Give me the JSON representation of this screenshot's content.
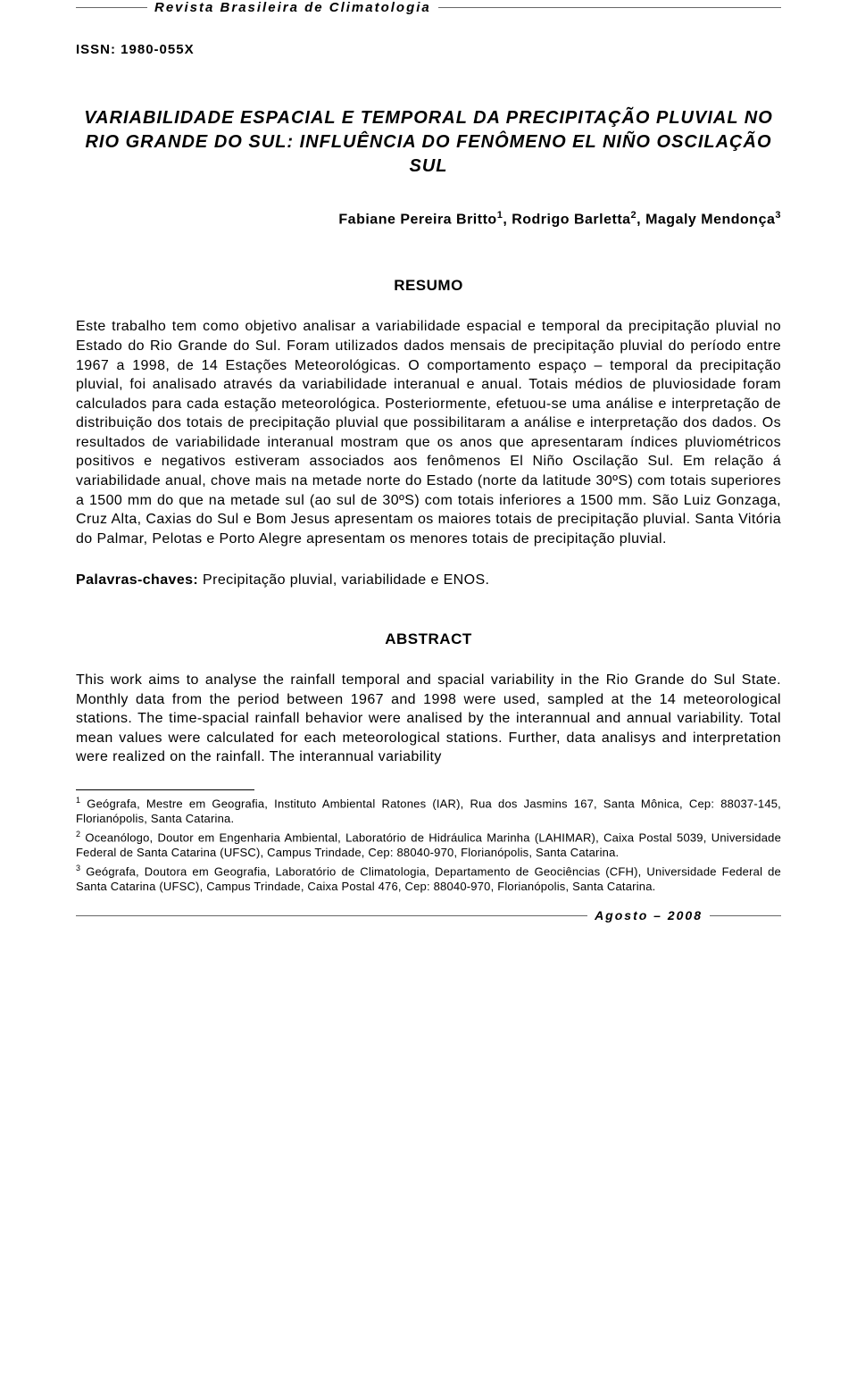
{
  "header": {
    "journal_name": "Revista Brasileira de Climatologia"
  },
  "issn": "ISSN: 1980-055X",
  "title": "VARIABILIDADE ESPACIAL E TEMPORAL DA PRECIPITAÇÃO PLUVIAL NO RIO GRANDE DO SUL: INFLUÊNCIA DO FENÔMENO EL NIÑO OSCILAÇÃO SUL",
  "authors": {
    "a1": "Fabiane Pereira Britto",
    "s1": "1",
    "sep1": ", ",
    "a2": "Rodrigo Barletta",
    "s2": "2",
    "sep2": ", ",
    "a3": "Magaly Mendonça",
    "s3": "3"
  },
  "sections": {
    "resumo_heading": "RESUMO",
    "resumo_text": "Este trabalho tem como objetivo analisar a variabilidade espacial e temporal da precipitação pluvial no Estado do Rio Grande do Sul. Foram utilizados dados mensais de precipitação pluvial do período entre 1967 a 1998, de 14 Estações Meteorológicas. O comportamento espaço – temporal da precipitação pluvial, foi analisado através da variabilidade interanual e anual. Totais médios de pluviosidade foram calculados para cada estação meteorológica. Posteriormente, efetuou-se uma análise e interpretação de distribuição dos totais de precipitação pluvial que possibilitaram a análise e interpretação dos dados. Os resultados de variabilidade interanual mostram que os anos que apresentaram índices pluviométricos positivos e negativos estiveram associados aos fenômenos El Niño Oscilação Sul. Em relação á variabilidade anual, chove mais na metade norte do Estado (norte da latitude 30ºS) com totais superiores a 1500 mm do que na metade sul (ao sul de 30ºS) com totais inferiores a 1500 mm. São Luiz Gonzaga, Cruz Alta, Caxias do Sul e Bom Jesus apresentam os maiores totais de precipitação pluvial. Santa Vitória do Palmar, Pelotas e Porto Alegre apresentam os menores totais de precipitação pluvial.",
    "palavras_label": "Palavras-chaves:",
    "palavras_value": " Precipitação pluvial, variabilidade e ENOS.",
    "abstract_heading": "ABSTRACT",
    "abstract_text": "This work aims to analyse the rainfall temporal and spacial variability in the Rio Grande do Sul State. Monthly data from the period between 1967 and 1998 were used, sampled at the 14 meteorological stations. The time-spacial rainfall behavior were analised by the interannual and annual variability. Total mean values were calculated for each meteorological stations. Further, data analisys and interpretation were realized on the rainfall. The interannual variability"
  },
  "footnotes": {
    "f1_num": "1",
    "f1_text": " Geógrafa, Mestre em Geografia, Instituto Ambiental Ratones (IAR), Rua dos Jasmins 167, Santa Mônica, Cep: 88037-145, Florianópolis, Santa Catarina.",
    "f2_num": "2",
    "f2_text": " Oceanólogo, Doutor em Engenharia Ambiental, Laboratório de Hidráulica Marinha (LAHIMAR), Caixa Postal 5039, Universidade Federal de Santa Catarina (UFSC), Campus Trindade, Cep: 88040-970, Florianópolis, Santa Catarina.",
    "f3_num": "3",
    "f3_text": " Geógrafa, Doutora em Geografia, Laboratório de Climatologia, Departamento de Geociências (CFH), Universidade Federal de Santa Catarina (UFSC), Campus Trindade, Caixa Postal 476, Cep: 88040-970, Florianópolis, Santa Catarina."
  },
  "footer": {
    "date": "Agosto – 2008"
  },
  "colors": {
    "text": "#000000",
    "rule": "#666666",
    "background": "#ffffff"
  }
}
